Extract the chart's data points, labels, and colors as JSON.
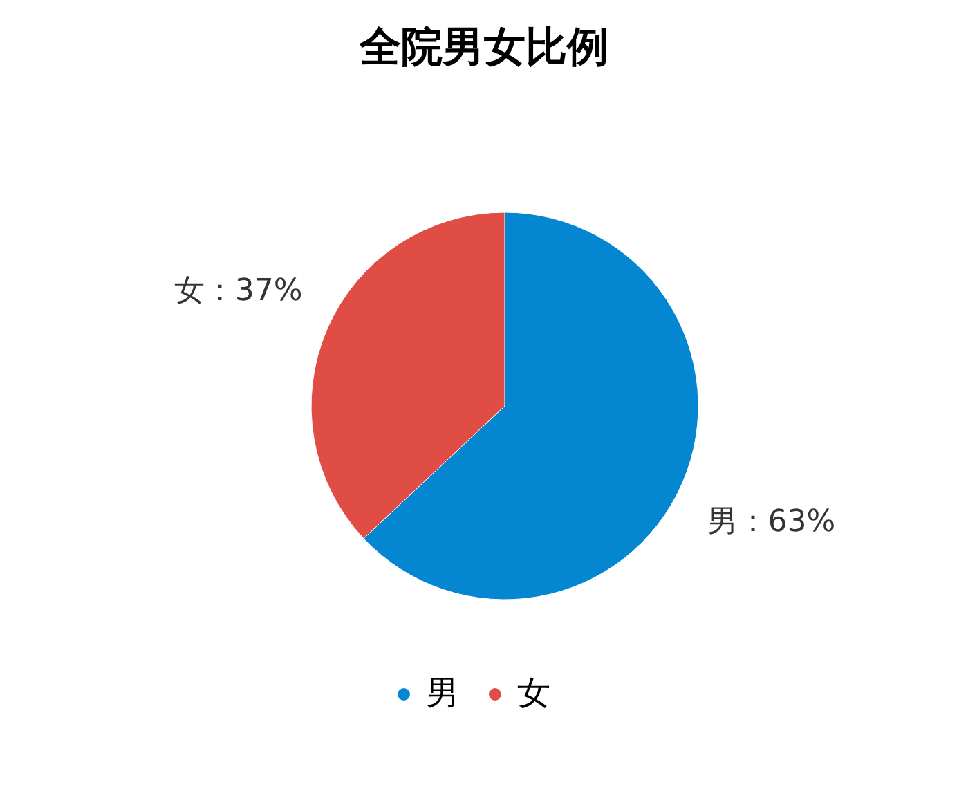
{
  "chart_data": {
    "type": "pie",
    "title": "全院男女比例",
    "categories": [
      "男",
      "女"
    ],
    "values": [
      63,
      37
    ],
    "colors": [
      "#0487d0",
      "#e04d45"
    ],
    "value_labels": [
      "男：63%",
      "女：37%"
    ],
    "legend": "bottom"
  }
}
